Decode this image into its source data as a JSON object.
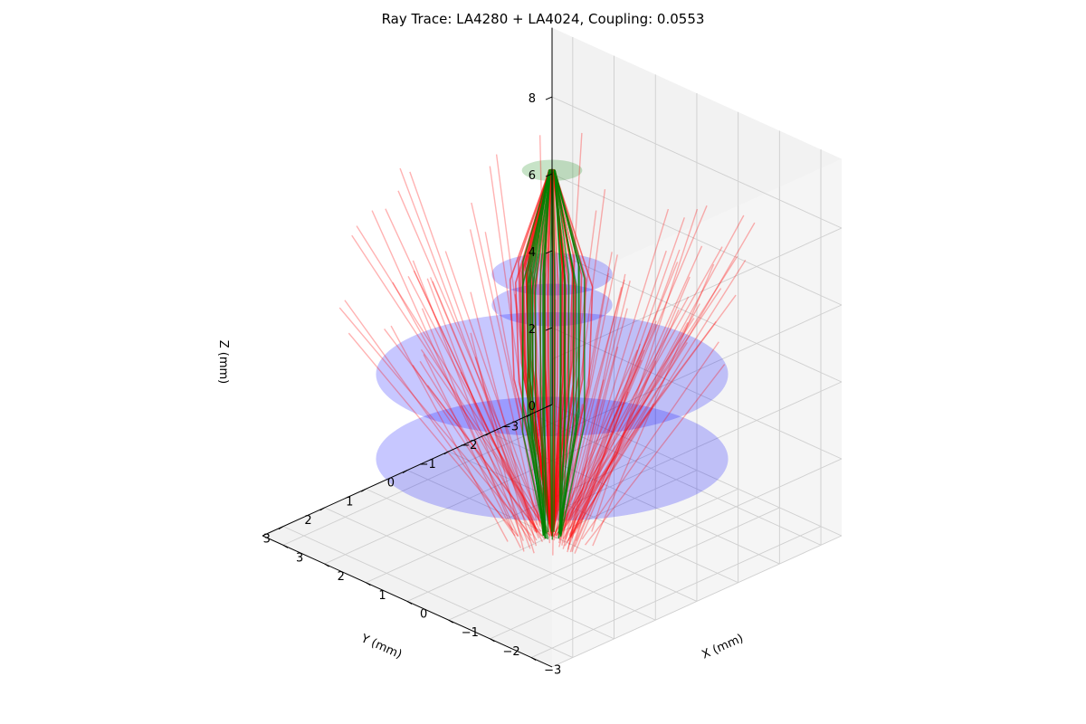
{
  "chart_data": {
    "type": "scatter",
    "subtype": "3d-ray-trace",
    "title": "Ray Trace: LA4280 + LA4024, Coupling: 0.0553",
    "xlabel": "X (mm)",
    "ylabel": "Y (mm)",
    "zlabel": "Z (mm)",
    "xlim": [
      -3.5,
      3.5
    ],
    "ylim": [
      -3.5,
      3.5
    ],
    "zlim": [
      0,
      9.8
    ],
    "x_ticks": [
      -3,
      -2,
      -1,
      0,
      1,
      2,
      3
    ],
    "y_ticks": [
      -3,
      -2,
      -1,
      0,
      1,
      2,
      3
    ],
    "z_ticks": [
      0,
      2,
      4,
      6,
      8
    ],
    "grid": true,
    "view": "isometric-corner",
    "surfaces": [
      {
        "z": 2.0,
        "radius": 3.5,
        "color": "#0000ff"
      },
      {
        "z": 4.2,
        "radius": 3.5,
        "color": "#0000ff"
      },
      {
        "z": 6.0,
        "radius": 1.2,
        "color": "#0000ff"
      },
      {
        "z": 6.8,
        "radius": 1.2,
        "color": "#0000ff"
      },
      {
        "z": 9.5,
        "radius": 0.6,
        "color": "#008000"
      }
    ],
    "series": [
      {
        "color": "#ff0000",
        "source_z": 0,
        "count": 90
      },
      {
        "color": "#008000",
        "source_z": 0,
        "target_z": 9.5,
        "count": 26
      }
    ]
  }
}
